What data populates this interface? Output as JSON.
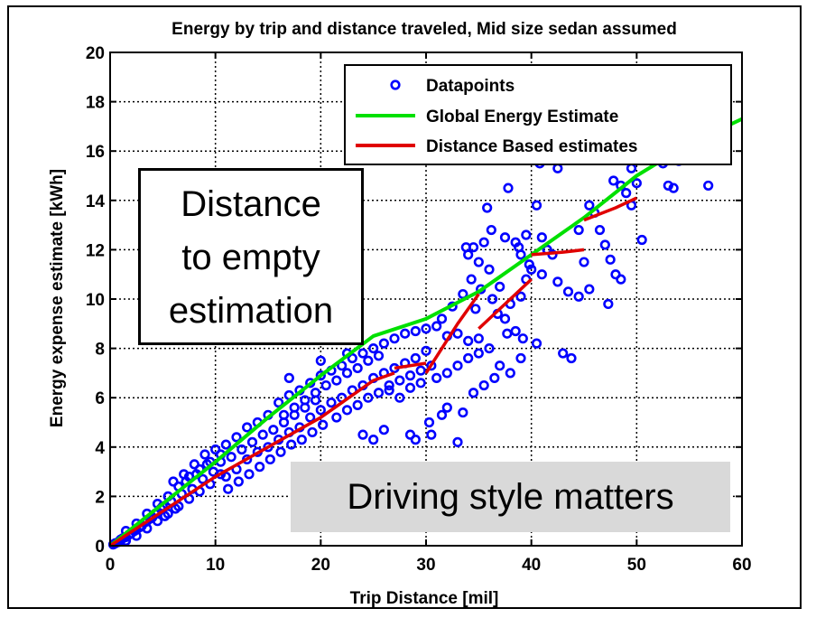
{
  "chart_data": {
    "type": "scatter",
    "title": "Energy by trip and distance traveled, Mid size sedan assumed",
    "xlabel": "Trip Distance [mil]",
    "ylabel": "Energy expense estimate [kWh]",
    "xlim": [
      0,
      60
    ],
    "ylim": [
      0,
      20
    ],
    "xticks": [
      "0",
      "10",
      "20",
      "30",
      "40",
      "50",
      "60"
    ],
    "yticks": [
      "0",
      "2",
      "4",
      "6",
      "8",
      "10",
      "12",
      "14",
      "16",
      "18",
      "20"
    ],
    "grid": true,
    "legend_position": "top-right",
    "legend": [
      "Datapoints",
      "Global Energy Estimate",
      "Distance Based estimates"
    ],
    "colors": {
      "datapoints": "#0000ff",
      "global": "#00e000",
      "distance": "#e00000"
    },
    "series": [
      {
        "name": "Datapoints",
        "type": "scatter",
        "points": [
          [
            0.3,
            0.05
          ],
          [
            0.5,
            0.1
          ],
          [
            0.8,
            0.15
          ],
          [
            1.0,
            0.25
          ],
          [
            1.2,
            0.3
          ],
          [
            1.5,
            0.35
          ],
          [
            1.8,
            0.45
          ],
          [
            2.0,
            0.5
          ],
          [
            2.3,
            0.6
          ],
          [
            2.5,
            0.65
          ],
          [
            2.8,
            0.75
          ],
          [
            3.0,
            0.8
          ],
          [
            3.3,
            0.95
          ],
          [
            3.5,
            1.0
          ],
          [
            3.8,
            1.1
          ],
          [
            4.0,
            1.15
          ],
          [
            4.3,
            1.3
          ],
          [
            4.5,
            1.35
          ],
          [
            4.8,
            1.5
          ],
          [
            5.0,
            1.6
          ],
          [
            1.5,
            0.6
          ],
          [
            2.5,
            0.9
          ],
          [
            3.5,
            1.3
          ],
          [
            4.5,
            1.7
          ],
          [
            5.5,
            2.0
          ],
          [
            6.5,
            2.4
          ],
          [
            7.5,
            2.8
          ],
          [
            8.5,
            3.1
          ],
          [
            9.5,
            3.4
          ],
          [
            10.5,
            3.7
          ],
          [
            1.5,
            0.2
          ],
          [
            2.5,
            0.4
          ],
          [
            3.5,
            0.7
          ],
          [
            4.5,
            1.0
          ],
          [
            5.5,
            1.3
          ],
          [
            6.5,
            1.6
          ],
          [
            7.5,
            1.9
          ],
          [
            8.5,
            2.2
          ],
          [
            9.5,
            2.5
          ],
          [
            10.5,
            2.9
          ],
          [
            5.2,
            1.2
          ],
          [
            5.8,
            1.8
          ],
          [
            6.2,
            1.5
          ],
          [
            6.8,
            2.1
          ],
          [
            7.2,
            2.6
          ],
          [
            7.8,
            2.3
          ],
          [
            8.2,
            2.9
          ],
          [
            8.8,
            2.7
          ],
          [
            9.2,
            3.3
          ],
          [
            9.8,
            3.0
          ],
          [
            6.0,
            2.6
          ],
          [
            7.0,
            2.9
          ],
          [
            8.0,
            3.3
          ],
          [
            9.0,
            3.7
          ],
          [
            10.0,
            3.9
          ],
          [
            11.0,
            4.1
          ],
          [
            12.0,
            4.4
          ],
          [
            13.0,
            4.8
          ],
          [
            14.0,
            5.0
          ],
          [
            15.0,
            5.3
          ],
          [
            11.0,
            2.8
          ],
          [
            12.0,
            3.1
          ],
          [
            13.0,
            3.5
          ],
          [
            14.0,
            3.8
          ],
          [
            15.0,
            4.0
          ],
          [
            16.0,
            4.3
          ],
          [
            17.0,
            4.6
          ],
          [
            18.0,
            4.8
          ],
          [
            19.0,
            5.2
          ],
          [
            20.0,
            5.5
          ],
          [
            10.5,
            3.4
          ],
          [
            11.5,
            3.6
          ],
          [
            12.5,
            3.9
          ],
          [
            13.5,
            4.2
          ],
          [
            14.5,
            4.5
          ],
          [
            15.5,
            4.7
          ],
          [
            16.5,
            5.0
          ],
          [
            17.5,
            5.3
          ],
          [
            18.5,
            5.6
          ],
          [
            19.5,
            5.9
          ],
          [
            11.2,
            2.3
          ],
          [
            12.2,
            2.6
          ],
          [
            13.2,
            2.9
          ],
          [
            14.2,
            3.2
          ],
          [
            15.2,
            3.5
          ],
          [
            16.2,
            3.8
          ],
          [
            17.2,
            4.1
          ],
          [
            18.2,
            4.3
          ],
          [
            19.2,
            4.6
          ],
          [
            20.2,
            4.9
          ],
          [
            16.0,
            5.8
          ],
          [
            17.0,
            6.1
          ],
          [
            18.0,
            6.3
          ],
          [
            19.0,
            6.6
          ],
          [
            20.0,
            6.9
          ],
          [
            21.0,
            7.1
          ],
          [
            22.0,
            7.3
          ],
          [
            23.0,
            7.6
          ],
          [
            24.0,
            7.8
          ],
          [
            25.0,
            8.0
          ],
          [
            16.5,
            5.3
          ],
          [
            17.5,
            5.6
          ],
          [
            18.5,
            5.9
          ],
          [
            19.5,
            6.2
          ],
          [
            20.5,
            6.5
          ],
          [
            21.5,
            6.7
          ],
          [
            22.5,
            7.0
          ],
          [
            23.5,
            7.2
          ],
          [
            24.5,
            7.5
          ],
          [
            25.5,
            7.7
          ],
          [
            21.0,
            5.8
          ],
          [
            22.0,
            6.0
          ],
          [
            23.0,
            6.3
          ],
          [
            24.0,
            6.5
          ],
          [
            25.0,
            6.8
          ],
          [
            26.0,
            7.0
          ],
          [
            27.0,
            7.2
          ],
          [
            28.0,
            7.4
          ],
          [
            29.0,
            7.6
          ],
          [
            30.0,
            7.9
          ],
          [
            21.5,
            5.2
          ],
          [
            22.5,
            5.5
          ],
          [
            23.5,
            5.7
          ],
          [
            24.5,
            6.0
          ],
          [
            25.5,
            6.2
          ],
          [
            26.5,
            6.5
          ],
          [
            27.5,
            6.7
          ],
          [
            28.5,
            6.9
          ],
          [
            29.5,
            7.1
          ],
          [
            30.5,
            7.3
          ],
          [
            26.0,
            8.2
          ],
          [
            27.0,
            8.4
          ],
          [
            28.0,
            8.6
          ],
          [
            29.0,
            8.7
          ],
          [
            30.0,
            8.8
          ],
          [
            31.0,
            8.9
          ],
          [
            32.0,
            8.5
          ],
          [
            33.0,
            8.6
          ],
          [
            34.0,
            8.3
          ],
          [
            35.0,
            8.4
          ],
          [
            26.5,
            6.3
          ],
          [
            27.5,
            6.0
          ],
          [
            28.5,
            6.4
          ],
          [
            29.5,
            6.6
          ],
          [
            31.0,
            6.8
          ],
          [
            32.0,
            7.0
          ],
          [
            33.0,
            7.3
          ],
          [
            34.0,
            7.6
          ],
          [
            35.0,
            7.8
          ],
          [
            36.0,
            8.0
          ],
          [
            17.0,
            6.8
          ],
          [
            20.0,
            7.5
          ],
          [
            22.5,
            7.8
          ],
          [
            24.0,
            4.5
          ],
          [
            25.0,
            4.3
          ],
          [
            26.0,
            4.7
          ],
          [
            28.5,
            4.5
          ],
          [
            29.0,
            4.3
          ],
          [
            30.5,
            4.5
          ],
          [
            33.0,
            4.2
          ],
          [
            30.3,
            5.0
          ],
          [
            31.5,
            5.3
          ],
          [
            32.0,
            5.6
          ],
          [
            33.5,
            5.4
          ],
          [
            34.5,
            6.2
          ],
          [
            35.5,
            6.5
          ],
          [
            36.5,
            6.8
          ],
          [
            37.0,
            7.3
          ],
          [
            38.0,
            7.0
          ],
          [
            39.0,
            7.6
          ],
          [
            34.0,
            11.8
          ],
          [
            34.5,
            12.1
          ],
          [
            35.0,
            11.5
          ],
          [
            35.5,
            12.3
          ],
          [
            36.0,
            11.2
          ],
          [
            34.3,
            10.8
          ],
          [
            35.2,
            10.4
          ],
          [
            36.3,
            10.0
          ],
          [
            37.0,
            10.5
          ],
          [
            34.7,
            9.6
          ],
          [
            37.5,
            9.2
          ],
          [
            38.0,
            9.8
          ],
          [
            39.0,
            10.1
          ],
          [
            39.5,
            10.8
          ],
          [
            40.0,
            11.2
          ],
          [
            38.5,
            8.7
          ],
          [
            39.2,
            8.4
          ],
          [
            40.5,
            8.2
          ],
          [
            37.7,
            8.6
          ],
          [
            36.8,
            9.4
          ],
          [
            37.5,
            12.5
          ],
          [
            38.5,
            12.3
          ],
          [
            39.0,
            11.8
          ],
          [
            39.5,
            12.6
          ],
          [
            37.8,
            14.5
          ],
          [
            41.0,
            12.5
          ],
          [
            41.5,
            12.0
          ],
          [
            42.0,
            11.8
          ],
          [
            40.8,
            15.5
          ],
          [
            42.5,
            15.3
          ],
          [
            42.5,
            10.7
          ],
          [
            43.5,
            10.3
          ],
          [
            44.5,
            10.1
          ],
          [
            45.5,
            10.4
          ],
          [
            43.0,
            7.8
          ],
          [
            43.8,
            7.6
          ],
          [
            44.5,
            12.8
          ],
          [
            45.0,
            11.5
          ],
          [
            45.5,
            13.8
          ],
          [
            46.0,
            13.5
          ],
          [
            46.5,
            12.8
          ],
          [
            47.0,
            12.2
          ],
          [
            47.5,
            11.6
          ],
          [
            48.0,
            11.0
          ],
          [
            47.3,
            9.8
          ],
          [
            48.5,
            10.8
          ],
          [
            47.8,
            14.8
          ],
          [
            48.5,
            14.6
          ],
          [
            49.0,
            14.3
          ],
          [
            49.5,
            13.8
          ],
          [
            50.0,
            14.7
          ],
          [
            49.5,
            15.3
          ],
          [
            50.5,
            12.4
          ],
          [
            51.0,
            15.8
          ],
          [
            52.5,
            15.5
          ],
          [
            53.0,
            14.6
          ],
          [
            53.5,
            14.5
          ],
          [
            56.8,
            14.6
          ],
          [
            54.0,
            15.6
          ],
          [
            51.5,
            16.2
          ],
          [
            31.5,
            9.2
          ],
          [
            32.5,
            9.7
          ],
          [
            33.5,
            10.2
          ],
          [
            33.8,
            12.1
          ],
          [
            35.8,
            13.7
          ],
          [
            36.2,
            12.8
          ],
          [
            38.8,
            12.1
          ],
          [
            39.8,
            11.4
          ],
          [
            40.5,
            13.8
          ],
          [
            41.0,
            11.0
          ]
        ]
      },
      {
        "name": "Global Energy Estimate",
        "type": "line",
        "points": [
          [
            0,
            0
          ],
          [
            5,
            1.7
          ],
          [
            10,
            3.4
          ],
          [
            15,
            5.2
          ],
          [
            20,
            6.9
          ],
          [
            25,
            8.5
          ],
          [
            30,
            9.2
          ],
          [
            35,
            10.3
          ],
          [
            40,
            11.8
          ],
          [
            45,
            13.3
          ],
          [
            50,
            15.0
          ],
          [
            55,
            16.3
          ],
          [
            60,
            17.3
          ]
        ]
      },
      {
        "name": "Distance Based estimates",
        "type": "line",
        "segments": [
          [
            [
              0,
              0
            ],
            [
              5,
              1.4
            ],
            [
              10,
              2.8
            ],
            [
              15,
              4.0
            ],
            [
              20,
              5.2
            ],
            [
              25,
              6.7
            ],
            [
              27,
              7.0
            ]
          ],
          [
            [
              27,
              7.2
            ],
            [
              30,
              7.4
            ]
          ],
          [
            [
              30,
              7.0
            ],
            [
              33,
              9.0
            ],
            [
              35,
              10.2
            ]
          ],
          [
            [
              35,
              8.8
            ],
            [
              38,
              10.0
            ],
            [
              40,
              10.8
            ]
          ],
          [
            [
              40,
              11.8
            ],
            [
              43,
              11.9
            ],
            [
              45,
              12.0
            ]
          ],
          [
            [
              45,
              13.2
            ],
            [
              48,
              13.7
            ],
            [
              50,
              14.1
            ]
          ]
        ]
      }
    ],
    "annotations": [
      {
        "id": "distance",
        "lines": [
          "Distance",
          "to empty",
          "estimation"
        ]
      },
      {
        "id": "style",
        "text": "Driving style matters"
      }
    ]
  }
}
